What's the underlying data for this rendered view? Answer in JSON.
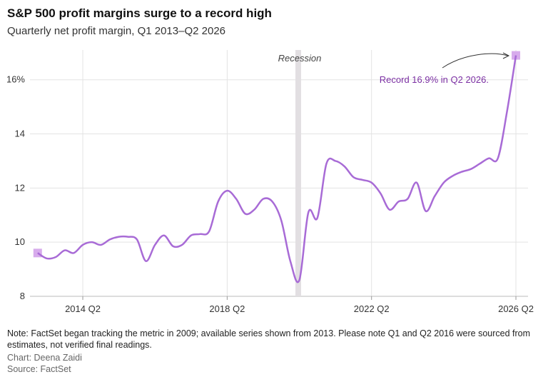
{
  "chart_data": {
    "type": "line",
    "title": "S&P 500 profit margins surge to a record high",
    "subtitle": "Quarterly net profit margin, Q1 2013–Q2 2026",
    "categories": [
      null,
      null,
      null,
      null,
      null,
      "2014 Q2",
      null,
      null,
      null,
      null,
      null,
      null,
      null,
      null,
      null,
      null,
      null,
      null,
      null,
      null,
      null,
      "2018 Q2",
      null,
      null,
      null,
      null,
      null,
      null,
      null,
      null,
      null,
      null,
      null,
      null,
      null,
      null,
      null,
      "2022 Q2",
      null,
      null,
      null,
      null,
      null,
      null,
      null,
      null,
      null,
      null,
      null,
      null,
      null,
      null,
      null,
      "2026 Q2"
    ],
    "series": [
      {
        "name": "Net profit margin",
        "color": "#a86bd6",
        "values": [
          9.6,
          9.4,
          9.45,
          9.7,
          9.6,
          9.9,
          10.0,
          9.9,
          10.1,
          10.2,
          10.2,
          10.1,
          9.3,
          9.9,
          10.25,
          9.85,
          9.9,
          10.25,
          10.3,
          10.4,
          11.5,
          11.9,
          11.6,
          11.05,
          11.2,
          11.6,
          11.5,
          10.8,
          9.3,
          8.6,
          11.1,
          10.9,
          12.9,
          13.0,
          12.8,
          12.4,
          12.3,
          12.2,
          11.8,
          11.2,
          11.5,
          11.6,
          12.2,
          11.15,
          11.7,
          12.2,
          12.45,
          12.6,
          12.7,
          12.9,
          13.1,
          13.1,
          14.8,
          16.9
        ]
      }
    ],
    "marker_color": "#d7abec",
    "ylim": [
      8,
      17.1
    ],
    "yticks": [
      8,
      10,
      12,
      14,
      {
        "value": 16,
        "label": "16%"
      }
    ],
    "grid": true,
    "annotations": [
      {
        "text": "Recession"
      },
      {
        "text": "Record 16.9% in Q2 2026.",
        "color": "#7b2fa3"
      }
    ],
    "note": "Note: FactSet began tracking the metric in 2009; available series shown from 2013. Please note Q1 and Q2 2016 were sourced from estimates, not verified final readings.",
    "credit": "Chart: Deena Zaidi",
    "source": "Source: FactSet"
  }
}
